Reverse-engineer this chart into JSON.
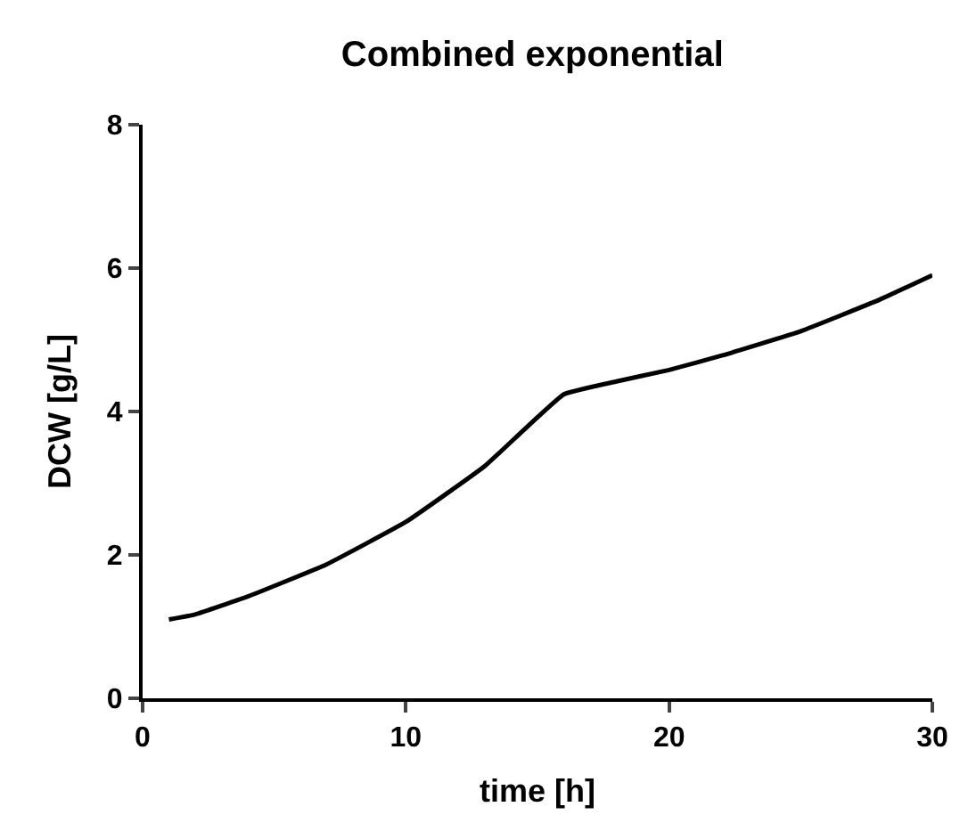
{
  "chart_data": {
    "type": "line",
    "title": "Combined exponential",
    "xlabel": "time [h]",
    "ylabel": "DCW [g/L]",
    "x": [
      1,
      2,
      4,
      7,
      10,
      13,
      16,
      18,
      20,
      22,
      25,
      28,
      30
    ],
    "series": [
      {
        "color": "#000000",
        "values": [
          1.1,
          1.17,
          1.42,
          1.87,
          2.46,
          3.24,
          4.24,
          4.42,
          4.58,
          4.78,
          5.12,
          5.56,
          5.9
        ]
      }
    ],
    "xlim": [
      0,
      30
    ],
    "xticks": [
      0,
      10,
      20,
      30
    ],
    "ylim": [
      0,
      8
    ],
    "yticks": [
      0,
      2,
      4,
      6,
      8
    ],
    "marker": "none",
    "line_style": "solid"
  }
}
